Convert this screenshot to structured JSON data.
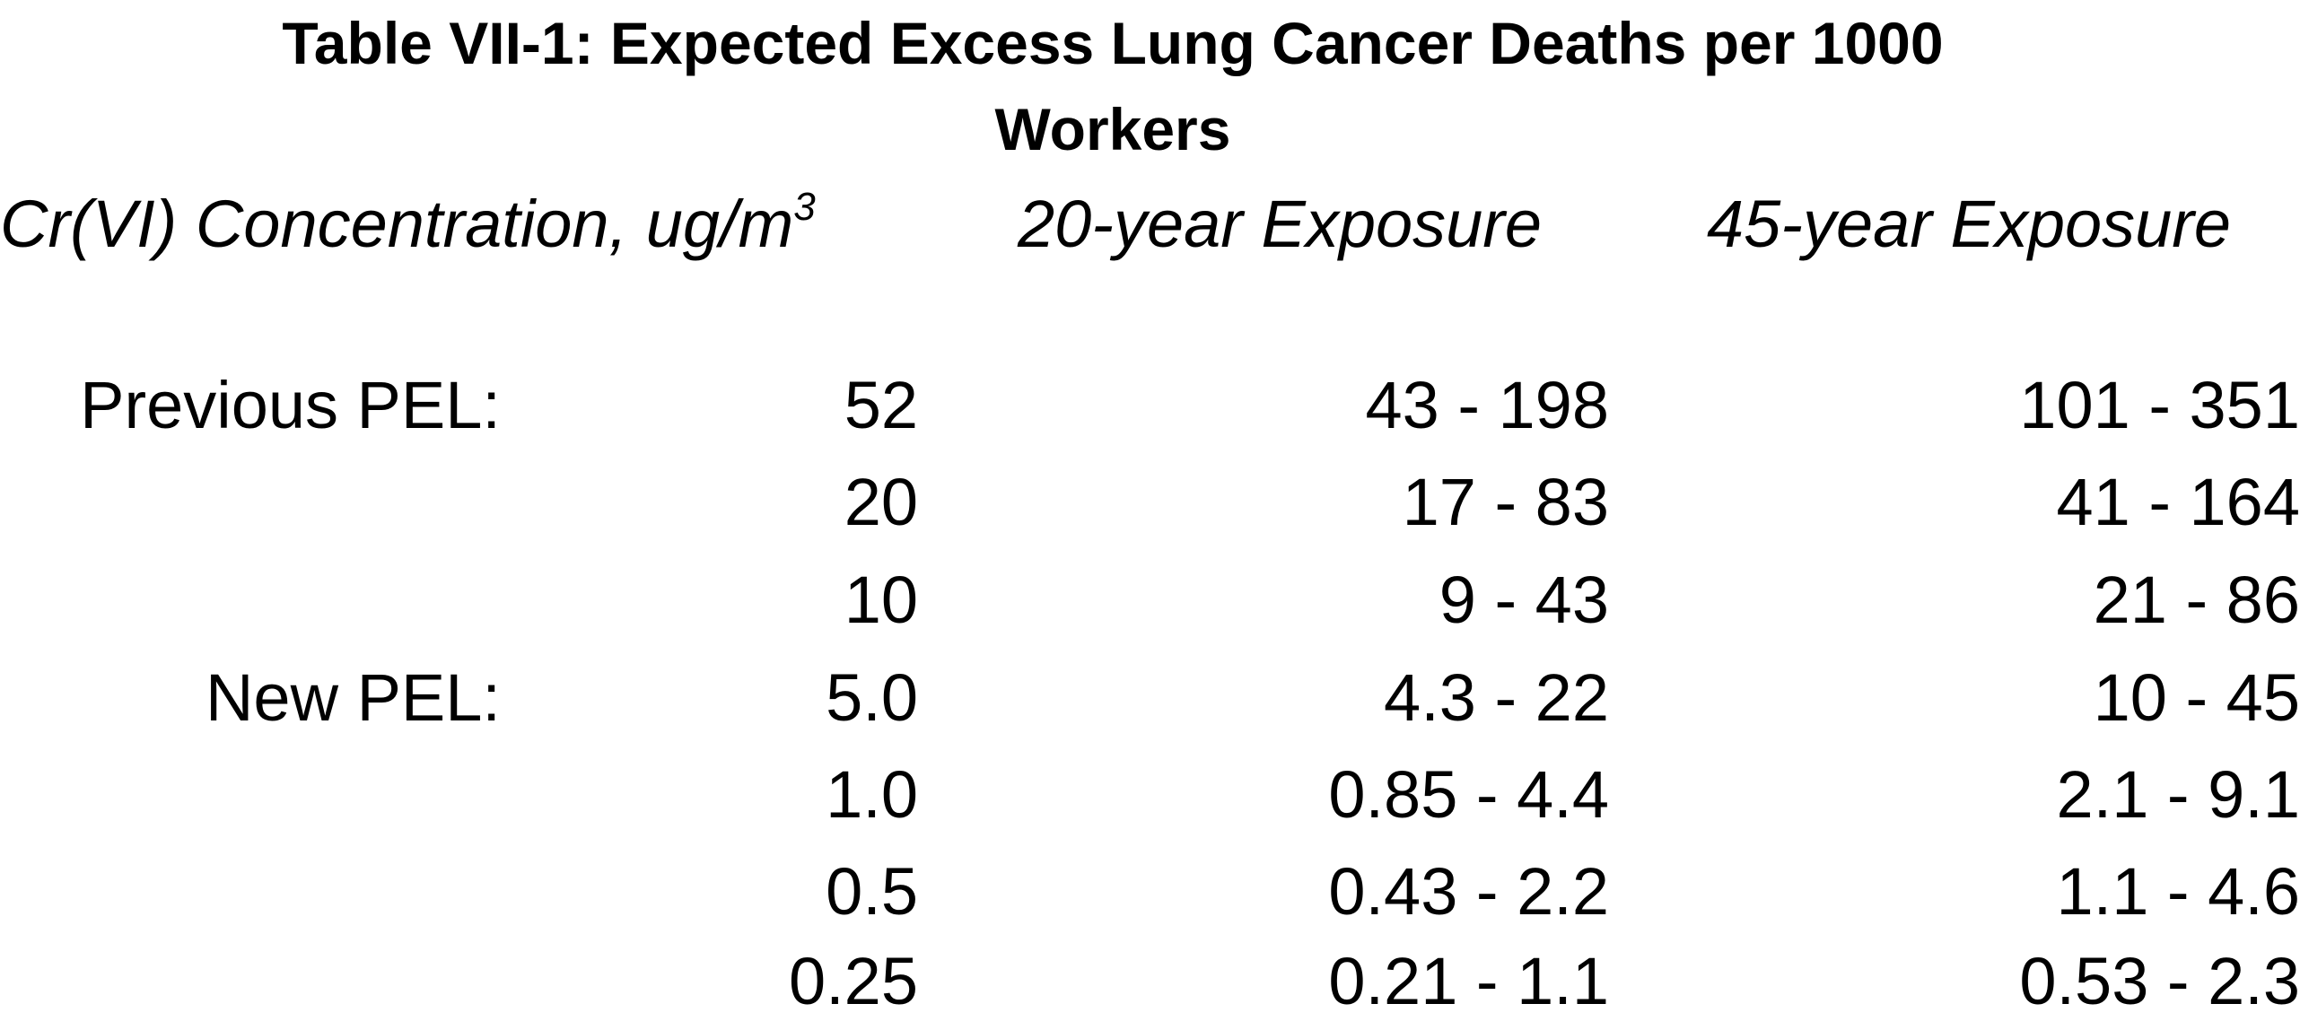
{
  "document": {
    "title_line1": "Table VII-1: Expected Excess Lung Cancer Deaths per 1000",
    "title_line2": "Workers"
  },
  "table": {
    "headers": {
      "concentration": "Cr(VI) Concentration, ug/m",
      "concentration_superscript": "3",
      "exposure_20": "20-year Exposure",
      "exposure_45": "45-year Exposure"
    },
    "rows": [
      {
        "label": "Previous PEL:",
        "concentration": "52",
        "exposure_20": "43 - 198",
        "exposure_45": "101 - 351"
      },
      {
        "label": "",
        "concentration": "20",
        "exposure_20": "17 - 83",
        "exposure_45": "41 - 164"
      },
      {
        "label": "",
        "concentration": "10",
        "exposure_20": "9 - 43",
        "exposure_45": "21 - 86"
      },
      {
        "label": "New PEL:",
        "concentration": "5.0",
        "exposure_20": "4.3 - 22",
        "exposure_45": "10 - 45"
      },
      {
        "label": "",
        "concentration": "1.0",
        "exposure_20": "0.85 - 4.4",
        "exposure_45": "2.1 - 9.1"
      },
      {
        "label": "",
        "concentration": "0.5",
        "exposure_20": "0.43 - 2.2",
        "exposure_45": "1.1 - 4.6"
      },
      {
        "label": "",
        "concentration": "0.25",
        "exposure_20": "0.21 - 1.1",
        "exposure_45": "0.53 - 2.3"
      }
    ]
  }
}
